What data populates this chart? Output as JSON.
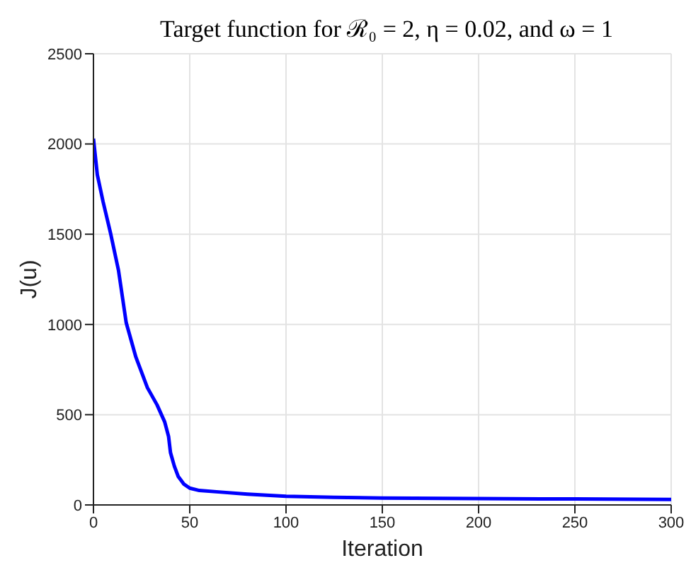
{
  "chart_data": {
    "type": "line",
    "title": "Target function for ℛ₀ = 2, η = 0.02, and ω = 1",
    "xlabel": "Iteration",
    "ylabel": "J(u)",
    "x": [
      0,
      2,
      5,
      9,
      13,
      17,
      22,
      28,
      33,
      37,
      39,
      40,
      42,
      44,
      47,
      50,
      55,
      65,
      80,
      100,
      125,
      150,
      200,
      250,
      300
    ],
    "series": [
      {
        "color": "#0000ff",
        "values": [
          2030,
          1830,
          1680,
          1500,
          1300,
          1010,
          820,
          650,
          555,
          460,
          380,
          290,
          215,
          158,
          115,
          93,
          80,
          72,
          60,
          48,
          42,
          38,
          35,
          33,
          30
        ]
      }
    ],
    "xlim": [
      0,
      300
    ],
    "xticks": [
      0,
      50,
      100,
      150,
      200,
      250,
      300
    ],
    "ylim": [
      0,
      2500
    ],
    "yticks": [
      0,
      500,
      1000,
      1500,
      2000,
      2500
    ],
    "grid": true,
    "marker": "none",
    "line_style": "solid"
  }
}
